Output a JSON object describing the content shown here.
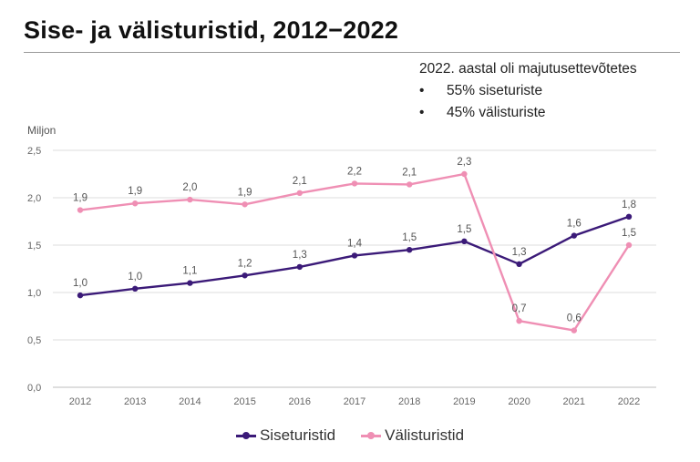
{
  "title": "Sise- ja välisturistid, 2012−2022",
  "note": {
    "heading": "2022. aastal oli majutusettevõtetes",
    "bullets": [
      "55% siseturiste",
      "45% välisturiste"
    ]
  },
  "colors": {
    "sise": "#3b1a78",
    "valis": "#ef8fb4",
    "grid": "#dcdcdc"
  },
  "chart_data": {
    "type": "line",
    "ylabel": "Miljon",
    "ylim": [
      0,
      2.5
    ],
    "yticks": [
      "0,0",
      "0,5",
      "1,0",
      "1,5",
      "2,0",
      "2,5"
    ],
    "grid": true,
    "legend_position": "bottom",
    "categories": [
      "2012",
      "2013",
      "2014",
      "2015",
      "2016",
      "2017",
      "2018",
      "2019",
      "2020",
      "2021",
      "2022"
    ],
    "series": [
      {
        "name": "Siseturistid",
        "color": "#3b1a78",
        "values": [
          0.97,
          1.04,
          1.1,
          1.18,
          1.27,
          1.39,
          1.45,
          1.54,
          1.3,
          1.6,
          1.8
        ],
        "labels": [
          "1,0",
          "1,0",
          "1,1",
          "1,2",
          "1,3",
          "1,4",
          "1,5",
          "1,5",
          "1,3",
          "1,6",
          "1,8"
        ]
      },
      {
        "name": "Välisturistid",
        "color": "#ef8fb4",
        "values": [
          1.87,
          1.94,
          1.98,
          1.93,
          2.05,
          2.15,
          2.14,
          2.25,
          0.7,
          0.6,
          1.5
        ],
        "labels": [
          "1,9",
          "1,9",
          "2,0",
          "1,9",
          "2,1",
          "2,2",
          "2,1",
          "2,3",
          "0,7",
          "0,6",
          "1,5"
        ]
      }
    ]
  }
}
